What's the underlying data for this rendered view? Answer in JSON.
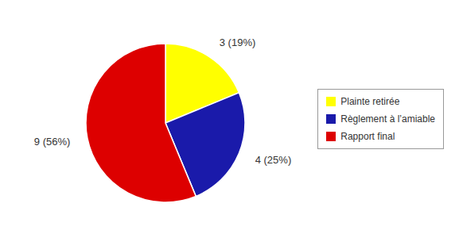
{
  "chart_data": {
    "type": "pie",
    "categories": [
      "Plainte retirée",
      "Règlement à l’amiable",
      "Rapport final"
    ],
    "values": [
      3,
      4,
      9
    ],
    "value_labels": [
      "3 (19%)",
      "4 (25%)",
      "9 (56%)"
    ],
    "colors": [
      "#ffff00",
      "#1a1aaa",
      "#dd0000"
    ],
    "data_labels": true,
    "legend": "right"
  }
}
